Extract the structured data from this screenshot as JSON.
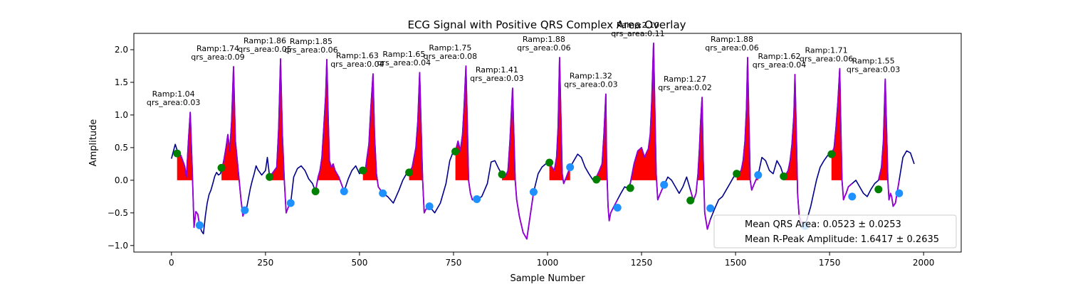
{
  "chart_data": {
    "type": "line",
    "title": "ECG Signal with Positive QRS Complex Area Overlay",
    "xlabel": "Sample Number",
    "ylabel": "Amplitude",
    "xlim": [
      -100,
      2100
    ],
    "ylim": [
      -1.1,
      2.25
    ],
    "xticks": [
      0,
      250,
      500,
      750,
      1000,
      1250,
      1500,
      1750,
      2000
    ],
    "yticks": [
      -1.0,
      -0.5,
      0.0,
      0.5,
      1.0,
      1.5,
      2.0
    ],
    "ytick_labels": [
      "−1.0",
      "−0.5",
      "0.0",
      "0.5",
      "1.0",
      "1.5",
      "2.0"
    ],
    "grid": false,
    "colors": {
      "signal": "#00008b",
      "qrs_segment": "#9400d3",
      "area_fill": "#ff0000",
      "onset_marker": "#008000",
      "offset_marker": "#1e90ff"
    },
    "beats": [
      {
        "r_x": 47,
        "amp": 1.04,
        "onset_x": 15,
        "onset_y": 0.41,
        "offset_x": 75,
        "offset_y": -0.69,
        "qrs_area": 0.03,
        "label_ramp": "Ramp:1.04",
        "label_area": "qrs_area:0.03"
      },
      {
        "r_x": 165,
        "amp": 1.74,
        "onset_x": 133,
        "onset_y": 0.19,
        "offset_x": 195,
        "offset_y": -0.46,
        "qrs_area": 0.09,
        "label_ramp": "Ramp:1.74",
        "label_area": "qrs_area:0.09"
      },
      {
        "r_x": 290,
        "amp": 1.86,
        "onset_x": 261,
        "onset_y": 0.05,
        "offset_x": 317,
        "offset_y": -0.35,
        "qrs_area": 0.05,
        "label_ramp": "Ramp:1.86",
        "label_area": "qrs_area:0.05"
      },
      {
        "r_x": 413,
        "amp": 1.85,
        "onset_x": 383,
        "onset_y": -0.17,
        "offset_x": 459,
        "offset_y": -0.17,
        "qrs_area": 0.06,
        "label_ramp": "Ramp:1.85",
        "label_area": "qrs_area:0.06"
      },
      {
        "r_x": 536,
        "amp": 1.63,
        "onset_x": 509,
        "onset_y": 0.15,
        "offset_x": 562,
        "offset_y": -0.2,
        "qrs_area": 0.04,
        "label_ramp": "Ramp:1.63",
        "label_area": "qrs_area:0.04"
      },
      {
        "r_x": 660,
        "amp": 1.65,
        "onset_x": 632,
        "onset_y": 0.12,
        "offset_x": 686,
        "offset_y": -0.4,
        "qrs_area": 0.04,
        "label_ramp": "Ramp:1.65",
        "label_area": "qrs_area:0.04"
      },
      {
        "r_x": 783,
        "amp": 1.75,
        "onset_x": 755,
        "onset_y": 0.44,
        "offset_x": 812,
        "offset_y": -0.29,
        "qrs_area": 0.08,
        "label_ramp": "Ramp:1.75",
        "label_area": "qrs_area:0.08"
      },
      {
        "r_x": 907,
        "amp": 1.41,
        "onset_x": 879,
        "onset_y": 0.09,
        "offset_x": 963,
        "offset_y": -0.18,
        "qrs_area": 0.03,
        "label_ramp": "Ramp:1.41",
        "label_area": "qrs_area:0.03"
      },
      {
        "r_x": 1032,
        "amp": 1.88,
        "onset_x": 1005,
        "onset_y": 0.27,
        "offset_x": 1060,
        "offset_y": 0.2,
        "qrs_area": 0.06,
        "label_ramp": "Ramp:1.88",
        "label_area": "qrs_area:0.06"
      },
      {
        "r_x": 1157,
        "amp": 1.32,
        "onset_x": 1130,
        "onset_y": 0.01,
        "offset_x": 1186,
        "offset_y": -0.42,
        "qrs_area": 0.03,
        "label_ramp": "Ramp:1.32",
        "label_area": "qrs_area:0.03"
      },
      {
        "r_x": 1282,
        "amp": 2.1,
        "onset_x": 1220,
        "onset_y": -0.12,
        "offset_x": 1310,
        "offset_y": -0.07,
        "qrs_area": 0.11,
        "label_ramp": "Ramp:2.10",
        "label_area": "qrs_area:0.11"
      },
      {
        "r_x": 1407,
        "amp": 1.27,
        "onset_x": 1380,
        "onset_y": -0.31,
        "offset_x": 1433,
        "offset_y": -0.43,
        "qrs_area": 0.02,
        "label_ramp": "Ramp:1.27",
        "label_area": "qrs_area:0.02"
      },
      {
        "r_x": 1532,
        "amp": 1.88,
        "onset_x": 1503,
        "onset_y": 0.1,
        "offset_x": 1560,
        "offset_y": 0.08,
        "qrs_area": 0.06,
        "label_ramp": "Ramp:1.88",
        "label_area": "qrs_area:0.06"
      },
      {
        "r_x": 1658,
        "amp": 1.62,
        "onset_x": 1628,
        "onset_y": 0.06,
        "offset_x": 1685,
        "offset_y": -0.7,
        "qrs_area": 0.04,
        "label_ramp": "Ramp:1.62",
        "label_area": "qrs_area:0.04"
      },
      {
        "r_x": 1783,
        "amp": 1.71,
        "onset_x": 1755,
        "onset_y": 0.4,
        "offset_x": 1810,
        "offset_y": -0.25,
        "qrs_area": 0.06,
        "label_ramp": "Ramp:1.71",
        "label_area": "qrs_area:0.06"
      },
      {
        "r_x": 1908,
        "amp": 1.55,
        "onset_x": 1880,
        "onset_y": -0.14,
        "offset_x": 1935,
        "offset_y": -0.2,
        "qrs_area": 0.03,
        "label_ramp": "Ramp:1.55",
        "label_area": "qrs_area:0.03"
      }
    ],
    "signal_x": [
      0,
      10,
      18,
      25,
      35,
      40,
      45,
      50,
      55,
      60,
      65,
      70,
      75,
      80,
      85,
      90,
      95,
      100,
      105,
      110,
      115,
      120,
      125,
      130,
      135,
      140,
      145,
      150,
      155,
      160,
      165,
      170,
      175,
      180,
      185,
      190,
      195,
      200,
      210,
      215,
      220,
      225,
      230,
      240,
      250,
      255,
      261,
      270,
      280,
      285,
      290,
      295,
      300,
      305,
      310,
      317,
      325,
      335,
      345,
      355,
      365,
      375,
      383,
      390,
      395,
      400,
      405,
      410,
      413,
      417,
      420,
      425,
      430,
      435,
      445,
      459,
      470,
      480,
      490,
      500,
      509,
      515,
      520,
      525,
      530,
      536,
      540,
      545,
      550,
      562,
      575,
      590,
      605,
      615,
      625,
      632,
      640,
      645,
      650,
      655,
      660,
      664,
      668,
      672,
      676,
      686,
      700,
      715,
      730,
      740,
      748,
      755,
      762,
      768,
      774,
      778,
      783,
      787,
      790,
      795,
      800,
      812,
      825,
      840,
      850,
      860,
      870,
      879,
      885,
      890,
      895,
      900,
      907,
      911,
      914,
      918,
      925,
      935,
      945,
      963,
      975,
      985,
      995,
      1005,
      1012,
      1018,
      1024,
      1028,
      1032,
      1036,
      1039,
      1043,
      1050,
      1060,
      1070,
      1080,
      1090,
      1100,
      1110,
      1120,
      1130,
      1138,
      1145,
      1150,
      1155,
      1157,
      1161,
      1164,
      1168,
      1175,
      1186,
      1195,
      1205,
      1212,
      1220,
      1230,
      1240,
      1250,
      1258,
      1263,
      1268,
      1273,
      1277,
      1282,
      1286,
      1289,
      1293,
      1300,
      1310,
      1320,
      1330,
      1340,
      1350,
      1360,
      1370,
      1380,
      1388,
      1395,
      1400,
      1404,
      1407,
      1411,
      1414,
      1418,
      1425,
      1433,
      1445,
      1455,
      1465,
      1475,
      1485,
      1495,
      1503,
      1510,
      1515,
      1520,
      1525,
      1529,
      1532,
      1536,
      1539,
      1543,
      1550,
      1560,
      1570,
      1580,
      1590,
      1600,
      1610,
      1620,
      1628,
      1635,
      1640,
      1645,
      1650,
      1655,
      1658,
      1662,
      1665,
      1669,
      1675,
      1685,
      1700,
      1715,
      1725,
      1735,
      1745,
      1755,
      1762,
      1767,
      1772,
      1777,
      1780,
      1783,
      1787,
      1790,
      1794,
      1800,
      1810,
      1820,
      1830,
      1840,
      1850,
      1860,
      1870,
      1880,
      1888,
      1893,
      1898,
      1902,
      1905,
      1908,
      1912,
      1915,
      1919,
      1925,
      1935,
      1945,
      1955,
      1965,
      1975,
      1985,
      1993,
      2000
    ],
    "signal_y": [
      0.33,
      0.55,
      0.41,
      0.38,
      0.22,
      0.05,
      0.6,
      1.04,
      0.2,
      -0.72,
      -0.48,
      -0.52,
      -0.69,
      -0.78,
      -0.82,
      -0.55,
      -0.35,
      -0.22,
      -0.15,
      -0.05,
      0.06,
      0.12,
      0.08,
      0.1,
      0.19,
      0.33,
      0.5,
      0.7,
      0.45,
      0.9,
      1.74,
      0.6,
      0.3,
      0.0,
      -0.3,
      -0.55,
      -0.46,
      -0.42,
      -0.12,
      0.0,
      0.1,
      0.22,
      0.16,
      0.08,
      0.15,
      0.35,
      0.05,
      0.12,
      0.2,
      0.8,
      1.86,
      0.7,
      0.0,
      -0.5,
      -0.42,
      -0.35,
      0.05,
      0.18,
      0.22,
      0.15,
      0.02,
      -0.05,
      -0.17,
      0.05,
      0.15,
      0.35,
      0.8,
      1.3,
      1.85,
      0.9,
      0.3,
      0.2,
      0.25,
      0.15,
      0.05,
      -0.17,
      0.02,
      0.15,
      0.22,
      0.1,
      0.15,
      0.12,
      0.35,
      0.55,
      1.1,
      1.63,
      0.7,
      0.1,
      -0.1,
      -0.2,
      -0.25,
      -0.35,
      -0.15,
      0.0,
      0.1,
      0.12,
      0.2,
      0.35,
      0.5,
      0.9,
      1.65,
      0.8,
      0.0,
      -0.5,
      -0.45,
      -0.4,
      -0.5,
      -0.35,
      -0.05,
      0.3,
      0.42,
      0.44,
      0.6,
      0.45,
      0.7,
      1.1,
      1.75,
      0.8,
      0.0,
      -0.2,
      -0.3,
      -0.29,
      -0.25,
      -0.05,
      0.28,
      0.3,
      0.18,
      0.09,
      0.05,
      0.08,
      0.15,
      0.6,
      1.41,
      0.6,
      0.0,
      -0.3,
      -0.55,
      -0.8,
      -0.9,
      -0.18,
      0.1,
      0.2,
      0.25,
      0.27,
      0.2,
      0.15,
      0.35,
      0.8,
      1.88,
      0.9,
      0.1,
      -0.05,
      0.05,
      0.2,
      0.3,
      0.4,
      0.35,
      0.2,
      0.1,
      0.01,
      0.05,
      0.15,
      0.25,
      0.7,
      1.32,
      0.3,
      -0.4,
      -0.62,
      -0.5,
      -0.42,
      -0.3,
      -0.2,
      -0.1,
      -0.12,
      -0.05,
      0.25,
      0.45,
      0.5,
      0.35,
      0.42,
      0.48,
      0.7,
      1.2,
      2.1,
      0.9,
      0.1,
      -0.3,
      -0.2,
      -0.07,
      0.05,
      0.0,
      -0.1,
      -0.2,
      -0.1,
      0.05,
      -0.15,
      -0.31,
      -0.2,
      0.1,
      0.5,
      0.9,
      1.27,
      0.3,
      -0.5,
      -0.75,
      -0.6,
      -0.43,
      -0.3,
      -0.25,
      -0.15,
      -0.05,
      0.05,
      0.1,
      0.12,
      0.15,
      0.3,
      0.6,
      1.1,
      1.88,
      0.8,
      0.0,
      -0.15,
      -0.05,
      0.08,
      0.35,
      0.3,
      0.15,
      0.1,
      0.3,
      0.2,
      0.06,
      0.1,
      0.15,
      0.3,
      0.55,
      1.0,
      1.62,
      0.6,
      -0.2,
      -0.55,
      -0.65,
      -0.7,
      -0.4,
      0.0,
      0.2,
      0.3,
      0.38,
      0.4,
      0.5,
      0.8,
      1.2,
      1.71,
      0.8,
      0.0,
      -0.3,
      -0.25,
      -0.2,
      -0.1,
      -0.05,
      0.0,
      -0.1,
      -0.2,
      -0.25,
      -0.14,
      -0.05,
      0.0,
      0.2,
      0.6,
      1.55,
      0.7,
      0.0,
      -0.3,
      -0.2,
      -0.25,
      -0.4,
      -0.35,
      0.0,
      0.35,
      0.45,
      0.42,
      0.25
    ],
    "legend": {
      "placement": "lower-right",
      "entries": [
        "Mean QRS Area: 0.0523 ± 0.0253",
        "Mean R-Peak Amplitude: 1.6417 ± 0.2635"
      ]
    }
  }
}
